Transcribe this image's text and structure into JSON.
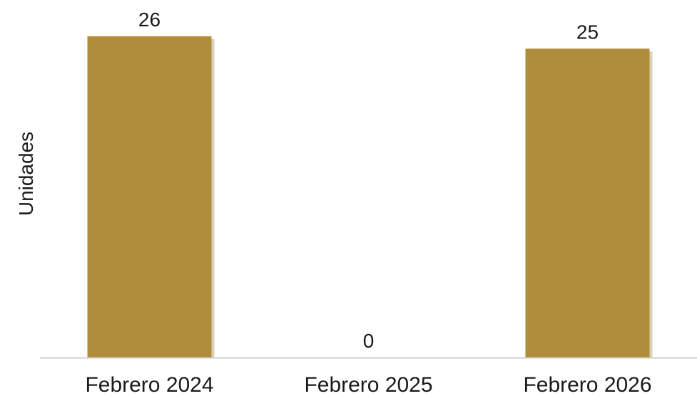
{
  "chart_data": {
    "type": "bar",
    "categories": [
      "Febrero 2024",
      "Febrero 2025",
      "Febrero 2026"
    ],
    "values": [
      26,
      0,
      25
    ],
    "xlabel": "",
    "ylabel": "Unidades",
    "ylim": [
      0,
      26
    ],
    "grid": false,
    "legend": "none",
    "data_labels": true,
    "colors": {
      "bar": "#B08D3A",
      "bar_shadow": "#d8d0bd",
      "baseline": "#d0d0d0",
      "text": "#1a1a1a"
    }
  }
}
